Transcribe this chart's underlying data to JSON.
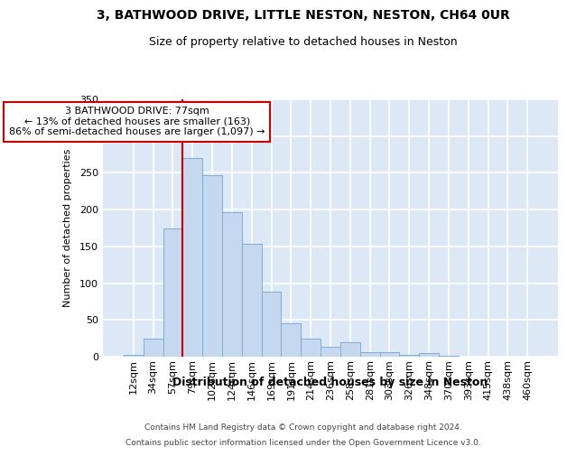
{
  "title": "3, BATHWOOD DRIVE, LITTLE NESTON, NESTON, CH64 0UR",
  "subtitle": "Size of property relative to detached houses in Neston",
  "xlabel": "Distribution of detached houses by size in Neston",
  "ylabel": "Number of detached properties",
  "bar_color": "#c5d8ef",
  "bar_edge_color": "#7bafd4",
  "fig_bg_color": "#ffffff",
  "ax_bg_color": "#dce8f5",
  "grid_color": "#ffffff",
  "categories": [
    "12sqm",
    "34sqm",
    "57sqm",
    "79sqm",
    "102sqm",
    "124sqm",
    "146sqm",
    "169sqm",
    "191sqm",
    "214sqm",
    "236sqm",
    "258sqm",
    "281sqm",
    "303sqm",
    "326sqm",
    "348sqm",
    "370sqm",
    "393sqm",
    "415sqm",
    "438sqm",
    "460sqm"
  ],
  "values": [
    2,
    24,
    175,
    270,
    247,
    197,
    154,
    88,
    46,
    25,
    13,
    20,
    6,
    6,
    3,
    5,
    1,
    0,
    0,
    0,
    0
  ],
  "ylim": [
    0,
    350
  ],
  "yticks": [
    0,
    50,
    100,
    150,
    200,
    250,
    300,
    350
  ],
  "property_line_x": 2.5,
  "annotation_text": "3 BATHWOOD DRIVE: 77sqm\n← 13% of detached houses are smaller (163)\n86% of semi-detached houses are larger (1,097) →",
  "annotation_box_facecolor": "#ffffff",
  "annotation_box_edgecolor": "#cc0000",
  "vline_color": "#cc0000",
  "footer_line1": "Contains HM Land Registry data © Crown copyright and database right 2024.",
  "footer_line2": "Contains public sector information licensed under the Open Government Licence v3.0."
}
